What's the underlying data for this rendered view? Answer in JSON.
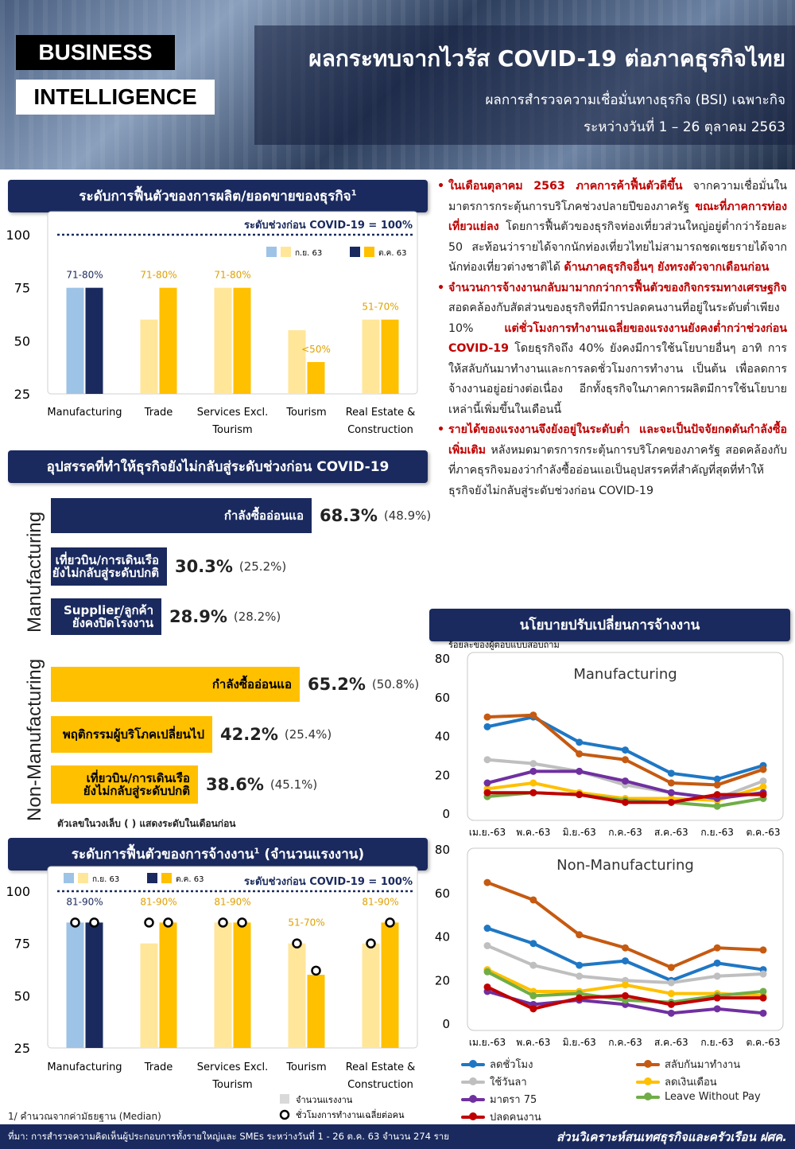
{
  "header": {
    "badge1": "BUSINESS",
    "badge2": "INTELLIGENCE",
    "title": "ผลกระทบจากไวรัส COVID-19 ต่อภาคธุรกิจไทย",
    "subtitle1": "ผลการสำรวจความเชื่อมั่นทางธุรกิจ (BSI) เฉพาะกิจ",
    "subtitle2": "ระหว่างวันที่ 1 – 26 ตุลาคม 2563"
  },
  "sections": {
    "production": "ระดับการฟื้นตัวของการผลิต/ยอดขายของธุรกิจ",
    "production_sup": "1",
    "obstacles": "อุปสรรคที่ทำให้ธุรกิจยังไม่กลับสู่ระดับช่วงก่อน COVID-19",
    "employment": "ระดับการฟื้นตัวของการจ้างงาน",
    "employment_sup": "1",
    "employment_suffix": " (จำนวนแรงงาน)",
    "policy": "นโยบายปรับเปลี่ยนการจ้างงาน"
  },
  "bullets": [
    {
      "parts": [
        {
          "t": "ในเดือนตุลาคม 2563 ภาคการค้าฟื้นตัวดีขึ้น",
          "h": true
        },
        {
          "t": " จากความเชื่อมั่นในมาตรการกระตุ้นการบริโภคช่วงปลายปีของภาครัฐ ",
          "h": false
        },
        {
          "t": "ขณะที่ภาคการท่องเที่ยวแย่ลง",
          "h": true
        },
        {
          "t": " โดยการฟื้นตัวของธุรกิจท่องเที่ยวส่วนใหญ่อยู่ต่ำกว่าร้อยละ 50 สะท้อนว่ารายได้จากนักท่องเที่ยวไทยไม่สามารถชดเชยรายได้จากนักท่องเที่ยวต่างชาติได้ ",
          "h": false
        },
        {
          "t": "ด้านภาคธุรกิจอื่นๆ ยังทรงตัวจากเดือนก่อน",
          "h": true
        }
      ]
    },
    {
      "parts": [
        {
          "t": "จำนวนการจ้างงานกลับมามากกว่าการฟื้นตัวของกิจกรรมทางเศรษฐกิจ",
          "h": true
        },
        {
          "t": " สอดคล้องกับสัดส่วนของธุรกิจที่มีการปลดคนงานที่อยู่ในระดับต่ำเพียง 10% ",
          "h": false
        },
        {
          "t": "แต่ชั่วโมงการทำงานเฉลี่ยของแรงงานยังคงต่ำกว่าช่วงก่อน COVID-19",
          "h": true
        },
        {
          "t": " โดยธุรกิจถึง 40% ยังคงมีการใช้นโยบายอื่นๆ อาทิ การให้สลับกันมาทำงานและการลดชั่วโมงการทำงาน เป็นต้น เพื่อลดการจ้างงานอยู่อย่างต่อเนื่อง อีกทั้งธุรกิจในภาคการผลิตมีการใช้นโยบายเหล่านี้เพิ่มขึ้นในเดือนนี้",
          "h": false
        }
      ]
    },
    {
      "parts": [
        {
          "t": "รายได้ของแรงงานจึงยังอยู่ในระดับต่ำ และจะเป็นปัจจัยกดดันกำลังซื้อเพิ่มเติม",
          "h": true
        },
        {
          "t": " หลังหมดมาตรการกระตุ้นการบริโภคของภาครัฐ สอดคล้องกับที่ภาคธุรกิจมองว่ากำลังซื้ออ่อนแอเป็นอุปสรรคที่สำคัญที่สุดที่ทำให้ธุรกิจยังไม่กลับสู่ระดับช่วงก่อน COVID-19",
          "h": false
        }
      ]
    }
  ],
  "obstacles": {
    "manufacturing_label": "Manufacturing",
    "non_manufacturing_label": "Non-Manufacturing",
    "manufacturing": [
      {
        "label": "กำลังซื้ออ่อนแอ",
        "value": "68.3%",
        "prev": "(48.9%)",
        "pct": 68.3
      },
      {
        "label": "เที่ยวบิน/การเดินเรือ\nยังไม่กลับสู่ระดับปกติ",
        "value": "30.3%",
        "prev": "(25.2%)",
        "pct": 30.3
      },
      {
        "label": "Supplier/ลูกค้า\nยังคงปิดโรงงาน",
        "value": "28.9%",
        "prev": "(28.2%)",
        "pct": 28.9
      }
    ],
    "non_manufacturing": [
      {
        "label": "กำลังซื้ออ่อนแอ",
        "value": "65.2%",
        "prev": "(50.8%)",
        "pct": 65.2
      },
      {
        "label": "พฤติกรรมผู้บริโภคเปลี่ยนไป",
        "value": "42.2%",
        "prev": "(25.4%)",
        "pct": 42.2
      },
      {
        "label": "เที่ยวบิน/การเดินเรือ\nยังไม่กลับสู่ระดับปกติ",
        "value": "38.6%",
        "prev": "(45.1%)",
        "pct": 38.6
      }
    ],
    "note": "ตัวเลขในวงเล็บ ( ) แสดงระดับในเดือนก่อน"
  },
  "footnote": "1/ คำนวณจากค่ามัธยฐาน (Median)",
  "footer": {
    "source": "ที่มา: การสำรวจความคิดเห็นผู้ประกอบการทั้งรายใหญ่และ SMEs ระหว่างวันที่ 1 - 26 ต.ค. 63 จำนวน 274 ราย",
    "org": "ส่วนวิเคราะห์สนเทศธุรกิจและครัวเรือน ฝศค."
  },
  "colors": {
    "navy": "#1a2a5e",
    "gold": "#ffc000",
    "light_blue": "#9dc3e6",
    "light_gold": "#ffe699",
    "red": "#c00000"
  },
  "chart_data": [
    {
      "id": "production",
      "type": "bar",
      "categories": [
        "Manufacturing",
        "Trade",
        "Services Excl.\nTourism",
        "Tourism",
        "Real Estate &\nConstruction"
      ],
      "series": [
        {
          "name": "ก.ย. 63",
          "values": [
            75,
            60,
            75,
            55,
            60
          ]
        },
        {
          "name": "ต.ค. 63",
          "values": [
            75,
            75,
            75,
            40,
            60
          ]
        }
      ],
      "range_labels": [
        "71-80%",
        "71-80%",
        "71-80%",
        "<50%",
        "51-70%"
      ],
      "reference_label": "ระดับช่วงก่อน COVID-19 = 100%",
      "reference": 100,
      "yticks": [
        25,
        50,
        75,
        100
      ],
      "ylim": [
        25,
        100
      ]
    },
    {
      "id": "employment",
      "type": "bar",
      "categories": [
        "Manufacturing",
        "Trade",
        "Services Excl.\nTourism",
        "Tourism",
        "Real Estate &\nConstruction"
      ],
      "series": [
        {
          "name": "ก.ย. 63",
          "values": [
            85,
            75,
            85,
            75,
            75
          ]
        },
        {
          "name": "ต.ค. 63",
          "values": [
            85,
            85,
            85,
            60,
            85
          ]
        }
      ],
      "hours_markers": {
        "ก.ย. 63": [
          85,
          85,
          85,
          75,
          75
        ],
        "ต.ค. 63": [
          85,
          85,
          85,
          62,
          85
        ]
      },
      "range_labels": [
        "81-90%",
        "81-90%",
        "81-90%",
        "51-70%",
        "81-90%"
      ],
      "reference_label": "ระดับช่วงก่อน COVID-19 = 100%",
      "reference": 100,
      "yticks": [
        25,
        50,
        75,
        100
      ],
      "ylim": [
        25,
        100
      ],
      "legend_bar": "จำนวนแรงงาน",
      "legend_marker": "ชั่วโมงการทำงานเฉลี่ยต่อคน"
    },
    {
      "id": "policy_manufacturing",
      "type": "line",
      "title": "Manufacturing",
      "ylabel": "ร้อยละของผู้ตอบแบบสอบถาม",
      "x": [
        "เม.ย.-63",
        "พ.ค.-63",
        "มิ.ย.-63",
        "ก.ค.-63",
        "ส.ค.-63",
        "ก.ย.-63",
        "ต.ค.-63"
      ],
      "ylim": [
        0,
        80
      ],
      "yticks": [
        0,
        20,
        40,
        60,
        80
      ],
      "series": [
        {
          "name": "ลดชั่วโมง",
          "color": "#1f77c4",
          "values": [
            45,
            50,
            37,
            33,
            21,
            18,
            25
          ]
        },
        {
          "name": "สลับกันมาทำงาน",
          "color": "#c55a11",
          "values": [
            50,
            51,
            31,
            28,
            16,
            15,
            23
          ]
        },
        {
          "name": "ใช้วันลา",
          "color": "#bfbfbf",
          "values": [
            28,
            26,
            22,
            15,
            11,
            8,
            17
          ]
        },
        {
          "name": "ลดเงินเดือน",
          "color": "#ffc000",
          "values": [
            13,
            16,
            11,
            8,
            8,
            7,
            14
          ]
        },
        {
          "name": "มาตรา 75",
          "color": "#7030a0",
          "values": [
            16,
            22,
            22,
            17,
            11,
            8,
            11
          ]
        },
        {
          "name": "Leave Without Pay",
          "color": "#70ad47",
          "values": [
            9,
            11,
            10,
            7,
            6,
            4,
            8
          ]
        },
        {
          "name": "ปลดคนงาน",
          "color": "#c00000",
          "values": [
            11,
            11,
            10,
            6,
            6,
            10,
            10
          ]
        }
      ]
    },
    {
      "id": "policy_non_manufacturing",
      "type": "line",
      "title": "Non-Manufacturing",
      "x": [
        "เม.ย.-63",
        "พ.ค.-63",
        "มิ.ย.-63",
        "ก.ค.-63",
        "ส.ค.-63",
        "ก.ย.-63",
        "ต.ค.-63"
      ],
      "ylim": [
        0,
        80
      ],
      "yticks": [
        0,
        20,
        40,
        60,
        80
      ],
      "series": [
        {
          "name": "ลดชั่วโมง",
          "color": "#1f77c4",
          "values": [
            44,
            37,
            27,
            29,
            20,
            28,
            25
          ]
        },
        {
          "name": "สลับกันมาทำงาน",
          "color": "#c55a11",
          "values": [
            65,
            57,
            41,
            35,
            26,
            35,
            34
          ]
        },
        {
          "name": "ใช้วันลา",
          "color": "#bfbfbf",
          "values": [
            36,
            27,
            22,
            20,
            19,
            22,
            23
          ]
        },
        {
          "name": "ลดเงินเดือน",
          "color": "#ffc000",
          "values": [
            25,
            15,
            15,
            18,
            14,
            14,
            13
          ]
        },
        {
          "name": "มาตรา 75",
          "color": "#7030a0",
          "values": [
            15,
            9,
            11,
            9,
            5,
            7,
            5
          ]
        },
        {
          "name": "Leave Without Pay",
          "color": "#70ad47",
          "values": [
            24,
            13,
            14,
            11,
            10,
            13,
            15
          ]
        },
        {
          "name": "ปลดคนงาน",
          "color": "#c00000",
          "values": [
            17,
            7,
            12,
            13,
            9,
            12,
            12
          ]
        }
      ]
    }
  ]
}
